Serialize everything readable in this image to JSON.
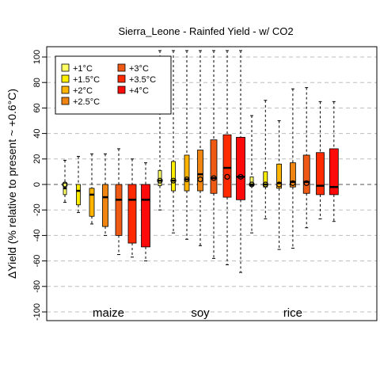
{
  "chart_data": {
    "type": "boxplot",
    "title": "Sierra_Leone - Rainfed Yield - w/ CO2",
    "xlabel": "",
    "ylabel": "ΔYield (% relative to present ~ +0.6°C)",
    "ylim": [
      -105,
      105
    ],
    "yticks": [
      -100,
      -80,
      -60,
      -40,
      -20,
      0,
      20,
      40,
      60,
      80,
      100
    ],
    "grid": "horizontal dashed",
    "legend_position": "top-left",
    "legend": [
      "+1°C",
      "+1.5°C",
      "+2°C",
      "+2.5°C",
      "+3°C",
      "+3.5°C",
      "+4°C"
    ],
    "colors": [
      "#ffff66",
      "#ffee00",
      "#ffb400",
      "#f08410",
      "#ee5a14",
      "#ff2a00",
      "#ff0a0a"
    ],
    "groups": [
      {
        "name": "maize",
        "boxes": [
          {
            "temp": "+1°C",
            "whisker_low": -14,
            "q1": -8,
            "median": -3,
            "q3": 1,
            "whisker_high": 19,
            "mean": 0
          },
          {
            "temp": "+1.5°C",
            "whisker_low": -22,
            "q1": -16,
            "median": -5,
            "q3": 0,
            "whisker_high": 22
          },
          {
            "temp": "+2°C",
            "whisker_low": -31,
            "q1": -25,
            "median": -8,
            "q3": -3,
            "whisker_high": 24
          },
          {
            "temp": "+2.5°C",
            "whisker_low": -40,
            "q1": -33,
            "median": -10,
            "q3": 0,
            "whisker_high": 24
          },
          {
            "temp": "+3°C",
            "whisker_low": -55,
            "q1": -40,
            "median": -12,
            "q3": 0,
            "whisker_high": 28
          },
          {
            "temp": "+3.5°C",
            "whisker_low": -57,
            "q1": -46,
            "median": -12,
            "q3": 0,
            "whisker_high": 20
          },
          {
            "temp": "+4°C",
            "whisker_low": -60,
            "q1": -49,
            "median": -12,
            "q3": 0,
            "whisker_high": 17
          }
        ]
      },
      {
        "name": "soy",
        "boxes": [
          {
            "temp": "+1°C",
            "whisker_low": -20,
            "q1": -1,
            "median": 3,
            "q3": 11,
            "whisker_high": 105,
            "mean": 3
          },
          {
            "temp": "+1.5°C",
            "whisker_low": -38,
            "q1": -5,
            "median": 3,
            "q3": 18,
            "whisker_high": 105,
            "mean": 3
          },
          {
            "temp": "+2°C",
            "whisker_low": -43,
            "q1": -5,
            "median": 4,
            "q3": 23,
            "whisker_high": 105,
            "mean": 4
          },
          {
            "temp": "+2.5°C",
            "whisker_low": -48,
            "q1": -5,
            "median": 8,
            "q3": 27,
            "whisker_high": 105,
            "mean": 4
          },
          {
            "temp": "+3°C",
            "whisker_low": -58,
            "q1": -7,
            "median": 5,
            "q3": 35,
            "whisker_high": 105,
            "mean": 5
          },
          {
            "temp": "+3.5°C",
            "whisker_low": -63,
            "q1": -10,
            "median": 13,
            "q3": 39,
            "whisker_high": 105,
            "mean": 6
          },
          {
            "temp": "+4°C",
            "whisker_low": -69,
            "q1": -12,
            "median": 6,
            "q3": 37,
            "whisker_high": 105,
            "mean": 6
          }
        ]
      },
      {
        "name": "rice",
        "boxes": [
          {
            "temp": "+1°C",
            "whisker_low": -38,
            "q1": -1,
            "median": 0,
            "q3": 6,
            "whisker_high": 54,
            "mean": 0
          },
          {
            "temp": "+1.5°C",
            "whisker_low": -27,
            "q1": -2,
            "median": 0,
            "q3": 10,
            "whisker_high": 66,
            "mean": 0
          },
          {
            "temp": "+2°C",
            "whisker_low": -51,
            "q1": -3,
            "median": 1,
            "q3": 16,
            "whisker_high": 50,
            "mean": 0
          },
          {
            "temp": "+2.5°C",
            "whisker_low": -50,
            "q1": -2,
            "median": 2,
            "q3": 17,
            "whisker_high": 75,
            "mean": 1
          },
          {
            "temp": "+3°C",
            "whisker_low": -34,
            "q1": -7,
            "median": 2,
            "q3": 23,
            "whisker_high": 76,
            "mean": 1
          },
          {
            "temp": "+3.5°C",
            "whisker_low": -27,
            "q1": -8,
            "median": -1,
            "q3": 25,
            "whisker_high": 65
          },
          {
            "temp": "+4°C",
            "whisker_low": -29,
            "q1": -8,
            "median": -2,
            "q3": 28,
            "whisker_high": 65
          }
        ]
      }
    ]
  }
}
